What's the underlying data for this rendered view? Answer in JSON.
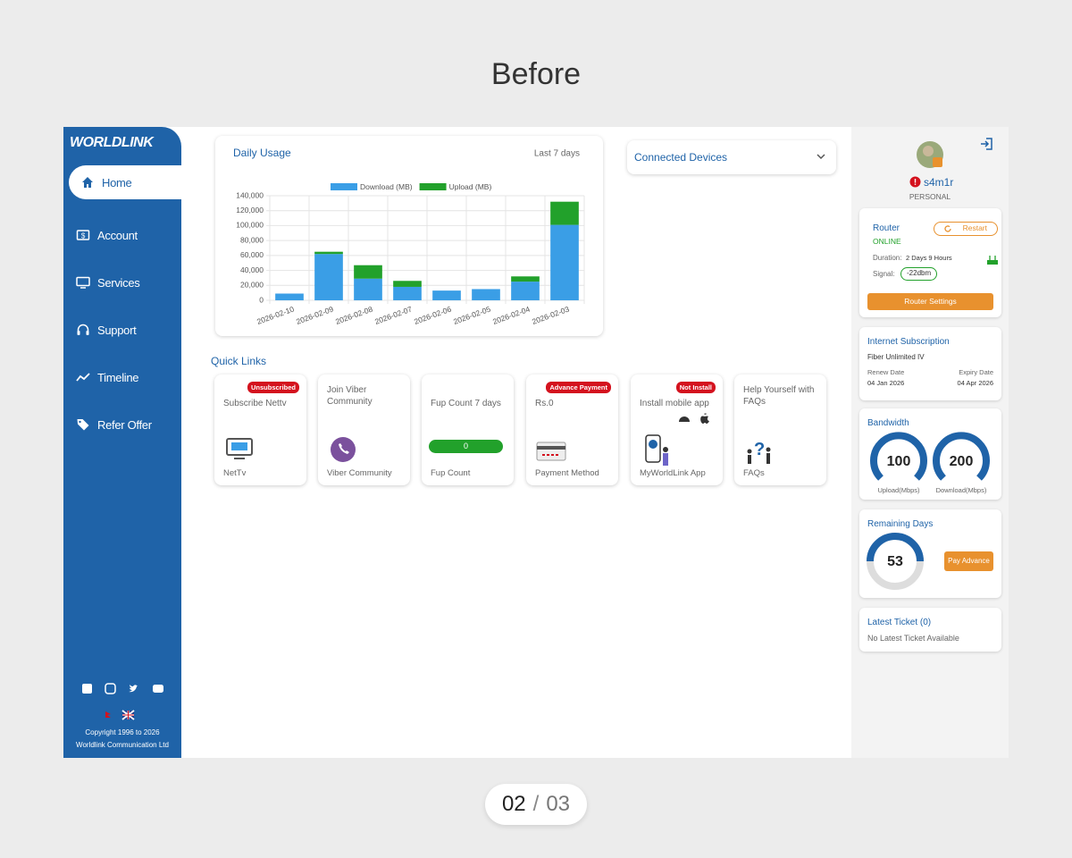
{
  "page": {
    "heading": "Before",
    "pager": {
      "current": "02",
      "separator": "/",
      "total": "03"
    }
  },
  "sidebar": {
    "logo": "WORLDLINK",
    "nav": [
      "Home",
      "Account",
      "Services",
      "Support",
      "Timeline",
      "Refer Offer"
    ],
    "copyright": [
      "Copyright 1996 to 2026",
      "Worldlink Communication Ltd"
    ]
  },
  "chart_data": {
    "type": "bar",
    "stacked": true,
    "title": "Daily Usage",
    "subtitle": "Last 7 days",
    "categories": [
      "2026-02-10",
      "2026-02-09",
      "2026-02-08",
      "2026-02-07",
      "2026-02-06",
      "2026-02-05",
      "2026-02-04",
      "2026-02-03"
    ],
    "series": [
      {
        "name": "Download (MB)",
        "color": "#3a9ee6",
        "values": [
          9000,
          62000,
          29000,
          18000,
          13000,
          15000,
          25000,
          101000
        ]
      },
      {
        "name": "Upload (MB)",
        "color": "#22a12b",
        "values": [
          0,
          3000,
          18000,
          8000,
          0,
          0,
          7000,
          31000
        ]
      }
    ],
    "ylim": [
      0,
      140000
    ],
    "yticks": [
      0,
      {
        "value": 20000,
        "label": "20,000"
      },
      {
        "value": 40000,
        "label": "40,000"
      },
      {
        "value": 60000,
        "label": "60,000"
      },
      {
        "value": 80000,
        "label": "80,000"
      },
      {
        "value": 100000,
        "label": "100,000"
      },
      {
        "value": 120000,
        "label": "120,000"
      },
      {
        "value": 140000,
        "label": "140,000"
      }
    ],
    "grid": true,
    "legend": "top"
  },
  "connected_devices": "Connected Devices",
  "quick_links": {
    "title": "Quick Links",
    "cards": [
      {
        "title": "Subscribe Nettv",
        "badge": "Unsubscribed",
        "label": "NetTv"
      },
      {
        "title": "Join Viber Community",
        "label": "Viber Community"
      },
      {
        "title": "Fup Count 7 days",
        "count": "0",
        "label": "Fup Count"
      },
      {
        "title": "Rs.0",
        "badge": "Advance Payment",
        "label": "Payment Method"
      },
      {
        "title": "Install mobile app",
        "badge": "Not Install",
        "label": "MyWorldLink App"
      },
      {
        "title": "Help Yourself with FAQs",
        "label": "FAQs"
      }
    ]
  },
  "profile": {
    "username": "s4m1r",
    "plan_type": "PERSONAL"
  },
  "router": {
    "title": "Router",
    "status": "ONLINE",
    "restart": "Restart",
    "duration_label": "Duration:",
    "duration": "2 Days 9 Hours",
    "signal_label": "Signal:",
    "signal": "-22dbm",
    "settings": "Router Settings"
  },
  "subscription": {
    "title": "Internet Subscription",
    "plan": "Fiber Unlimited IV",
    "renew_label": "Renew Date",
    "expiry_label": "Expiry Date",
    "renew": "04 Jan 2026",
    "expiry": "04 Apr 2026"
  },
  "bandwidth": {
    "title": "Bandwidth",
    "upload": "100",
    "upload_label": "Upload(Mbps)",
    "download": "200",
    "download_label": "Download(Mbps)"
  },
  "remaining": {
    "title": "Remaining Days",
    "days": "53",
    "button": "Pay Advance"
  },
  "ticket": {
    "title": "Latest Ticket (0)",
    "text": "No Latest Ticket Available"
  }
}
